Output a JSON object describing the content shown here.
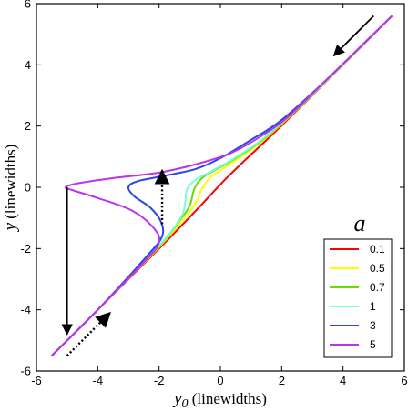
{
  "chart_data": {
    "type": "line",
    "xlabel_main": "y",
    "xlabel_sub": "0",
    "xlabel_unit": " (linewidths)",
    "ylabel_main": "y",
    "ylabel_unit": "  (linewidths)",
    "xlim": [
      -6,
      6
    ],
    "ylim": [
      -6,
      6
    ],
    "xticks": [
      -6,
      -4,
      -2,
      0,
      2,
      4,
      6
    ],
    "yticks": [
      -6,
      -4,
      -2,
      0,
      2,
      4,
      6
    ],
    "grid": false,
    "legend": {
      "title": "a",
      "placement": "bottom-right"
    },
    "series": [
      {
        "name": "0.1",
        "color": "#ff0000",
        "points": [
          [
            -5.5,
            -5.5
          ],
          [
            -4,
            -4
          ],
          [
            -2,
            -2
          ],
          [
            -1.2,
            -1.18
          ],
          [
            -0.6,
            -0.55
          ],
          [
            -0.2,
            -0.12
          ],
          [
            0.2,
            0.3
          ],
          [
            0.8,
            0.88
          ],
          [
            2,
            2.02
          ],
          [
            4,
            4
          ],
          [
            5.6,
            5.6
          ]
        ]
      },
      {
        "name": "0.5",
        "color": "#ffff00",
        "points": [
          [
            -5.5,
            -5.5
          ],
          [
            -4,
            -4
          ],
          [
            -2,
            -1.95
          ],
          [
            -1.2,
            -1.05
          ],
          [
            -0.8,
            -0.5
          ],
          [
            -0.6,
            -0.05
          ],
          [
            -0.35,
            0.3
          ],
          [
            0,
            0.55
          ],
          [
            0.6,
            0.95
          ],
          [
            1.5,
            1.62
          ],
          [
            3,
            3.02
          ],
          [
            5.6,
            5.6
          ]
        ]
      },
      {
        "name": "0.7",
        "color": "#66dd00",
        "points": [
          [
            -5.5,
            -5.5
          ],
          [
            -4,
            -4
          ],
          [
            -2,
            -1.93
          ],
          [
            -1.3,
            -1.05
          ],
          [
            -1.0,
            -0.6
          ],
          [
            -0.85,
            -0.05
          ],
          [
            -0.6,
            0.3
          ],
          [
            -0.2,
            0.55
          ],
          [
            0.5,
            0.95
          ],
          [
            1.5,
            1.65
          ],
          [
            3,
            3.03
          ],
          [
            5.6,
            5.6
          ]
        ]
      },
      {
        "name": "1",
        "color": "#77ffdd",
        "points": [
          [
            -5.5,
            -5.5
          ],
          [
            -4,
            -4
          ],
          [
            -2,
            -1.9
          ],
          [
            -1.3,
            -1.0
          ],
          [
            -1.15,
            -0.5
          ],
          [
            -1.08,
            -0.05
          ],
          [
            -0.8,
            0.25
          ],
          [
            -0.3,
            0.52
          ],
          [
            0.5,
            0.98
          ],
          [
            1.5,
            1.68
          ],
          [
            3,
            3.05
          ],
          [
            5.6,
            5.6
          ]
        ]
      },
      {
        "name": "3",
        "color": "#2a45e8",
        "points": [
          [
            -5.5,
            -5.5
          ],
          [
            -4,
            -4
          ],
          [
            -2.4,
            -2.25
          ],
          [
            -1.9,
            -1.6
          ],
          [
            -1.95,
            -1.1
          ],
          [
            -2.3,
            -0.65
          ],
          [
            -2.8,
            -0.3
          ],
          [
            -3.0,
            0.0
          ],
          [
            -2.7,
            0.2
          ],
          [
            -1.8,
            0.38
          ],
          [
            -0.8,
            0.6
          ],
          [
            0,
            0.95
          ],
          [
            1,
            1.55
          ],
          [
            2,
            2.2
          ],
          [
            3.5,
            3.55
          ],
          [
            5.6,
            5.6
          ]
        ]
      },
      {
        "name": "5",
        "color": "#bb33ee",
        "points": [
          [
            -5.5,
            -5.5
          ],
          [
            -4,
            -4
          ],
          [
            -2.5,
            -2.45
          ],
          [
            -2.0,
            -1.8
          ],
          [
            -2.2,
            -1.3
          ],
          [
            -2.9,
            -0.75
          ],
          [
            -4.0,
            -0.35
          ],
          [
            -4.8,
            -0.1
          ],
          [
            -5.05,
            0.0
          ],
          [
            -4.7,
            0.12
          ],
          [
            -3.5,
            0.3
          ],
          [
            -2,
            0.48
          ],
          [
            -0.8,
            0.75
          ],
          [
            0.3,
            1.1
          ],
          [
            1.3,
            1.65
          ],
          [
            2.2,
            2.3
          ],
          [
            3.5,
            3.55
          ],
          [
            5.6,
            5.6
          ]
        ]
      }
    ],
    "arrows": [
      {
        "style": "solid",
        "from": [
          5.0,
          5.6
        ],
        "to": [
          3.7,
          4.3
        ]
      },
      {
        "style": "solid",
        "from": [
          -5.0,
          0.0
        ],
        "to": [
          -5.0,
          -4.8
        ]
      },
      {
        "style": "dotted",
        "from": [
          -5.0,
          -5.5
        ],
        "to": [
          -3.6,
          -4.1
        ]
      },
      {
        "style": "dotted",
        "from": [
          -1.9,
          -1.2
        ],
        "to": [
          -1.9,
          0.55
        ]
      }
    ]
  }
}
